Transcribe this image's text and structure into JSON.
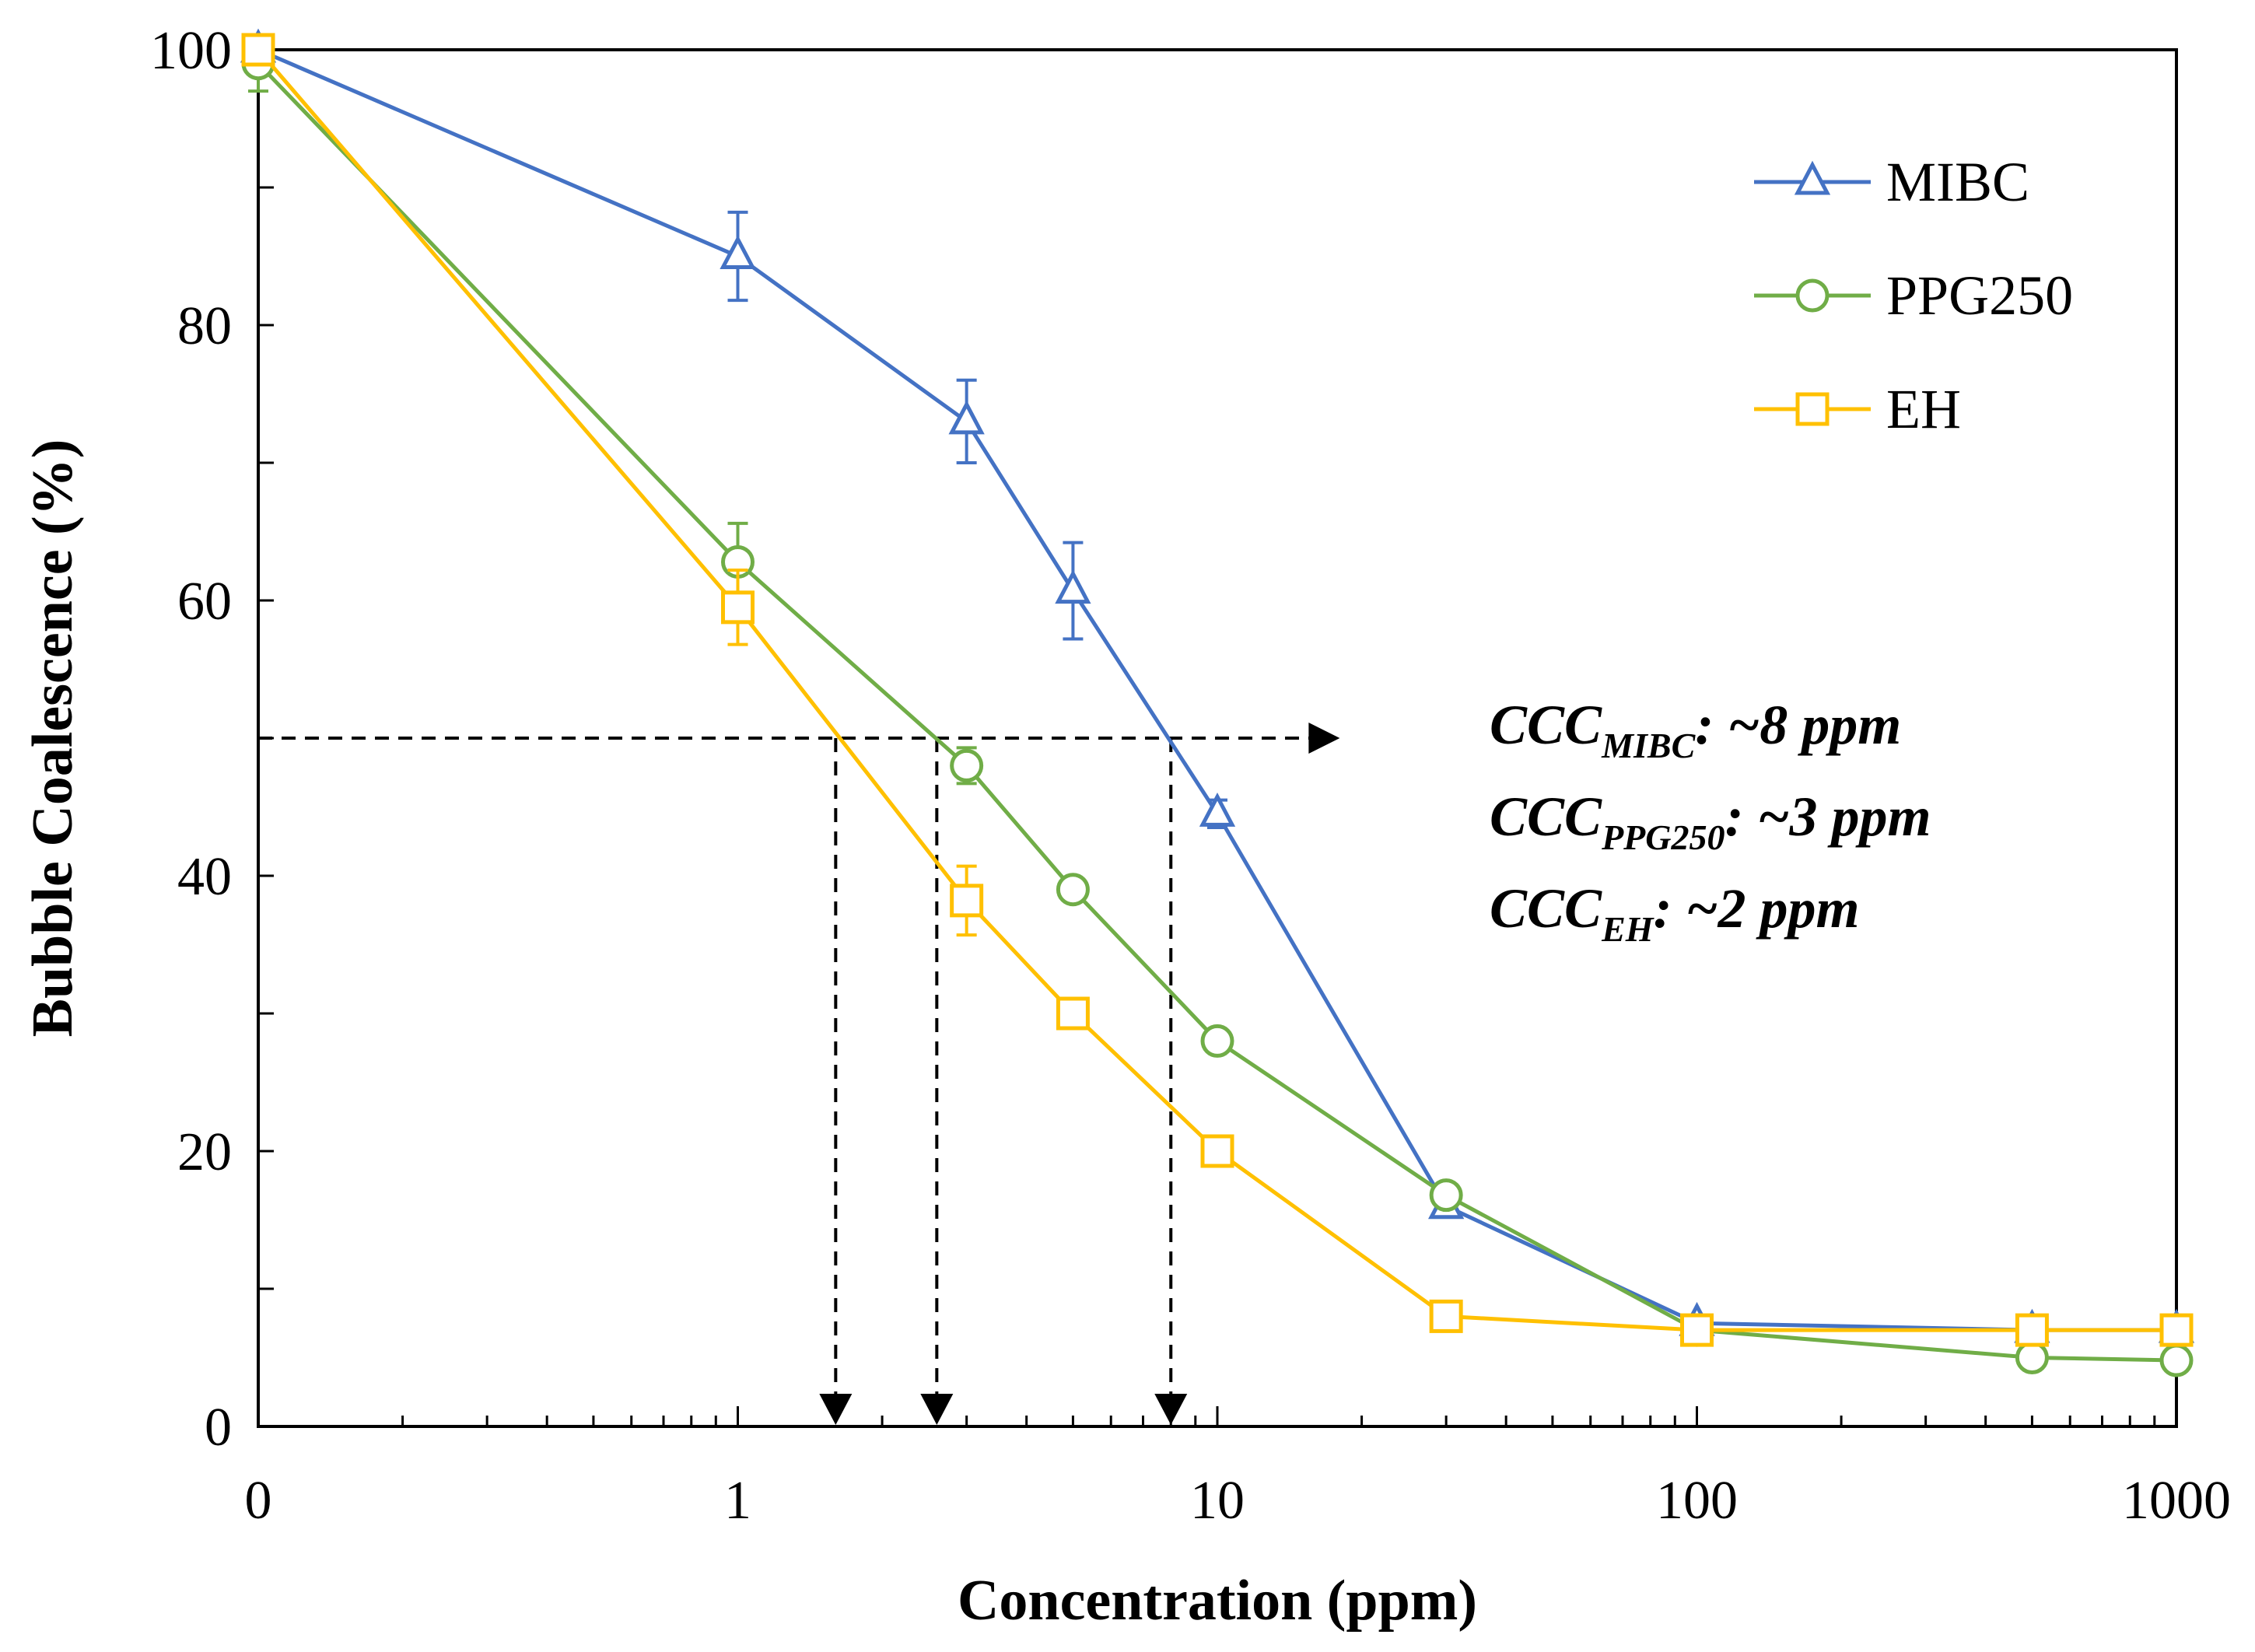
{
  "chart_data": {
    "type": "line",
    "xscale": "log",
    "xlabel": "Concentration (ppm)",
    "ylabel": "Bubble Coalescence (%)",
    "xlim": [
      0.1,
      1000
    ],
    "ylim": [
      0,
      100
    ],
    "x_tick_labels": [
      {
        "value": 0.1,
        "label": "0"
      },
      {
        "value": 1,
        "label": "1"
      },
      {
        "value": 10,
        "label": "10"
      },
      {
        "value": 100,
        "label": "100"
      },
      {
        "value": 1000,
        "label": "1000"
      }
    ],
    "y_tick_labels": [
      {
        "value": 0,
        "label": "0"
      },
      {
        "value": 20,
        "label": "20"
      },
      {
        "value": 40,
        "label": "40"
      },
      {
        "value": 60,
        "label": "60"
      },
      {
        "value": 80,
        "label": "80"
      },
      {
        "value": 100,
        "label": "100"
      }
    ],
    "y_minor_ticks": [
      10,
      30,
      50,
      70,
      90
    ],
    "legend_position": "top-right",
    "series": [
      {
        "name": "MIBC",
        "color": "#4472C4",
        "marker": "triangle",
        "x": [
          0.1,
          1,
          3,
          5,
          10,
          30,
          100,
          500,
          1000
        ],
        "y": [
          100,
          85,
          73,
          60.7,
          44.5,
          16,
          7.5,
          7,
          7
        ],
        "err": [
          0,
          3.2,
          3,
          3.5,
          1,
          0,
          0,
          0,
          0
        ]
      },
      {
        "name": "PPG250",
        "color": "#70AD47",
        "marker": "circle",
        "x": [
          0.1,
          1,
          3,
          5,
          10,
          30,
          100,
          500,
          1000
        ],
        "y": [
          99,
          62.8,
          48,
          39,
          28,
          16.8,
          7,
          5,
          4.8
        ],
        "err": [
          2,
          2.8,
          1.3,
          0,
          0,
          0,
          0,
          0,
          0
        ]
      },
      {
        "name": "EH",
        "color": "#FFC000",
        "marker": "square",
        "x": [
          0.1,
          1,
          3,
          5,
          10,
          30,
          100,
          500,
          1000
        ],
        "y": [
          100,
          59.5,
          38.2,
          30,
          20,
          8,
          7,
          7,
          7
        ],
        "err": [
          0,
          2.7,
          2.5,
          0,
          0,
          0,
          0,
          0,
          0
        ]
      }
    ],
    "reference": {
      "y": 50,
      "x_end": 18,
      "drop_lines_x": [
        1.6,
        2.6,
        8
      ]
    },
    "annotations": [
      {
        "prefix": "CCC",
        "sub": "MIBC",
        "suffix": ": ~8 ppm"
      },
      {
        "prefix": "CCC",
        "sub": "PPG250",
        "suffix": ": ~3 ppm"
      },
      {
        "prefix": "CCC",
        "sub": "EH",
        "suffix": ": ~2 ppm"
      }
    ]
  }
}
